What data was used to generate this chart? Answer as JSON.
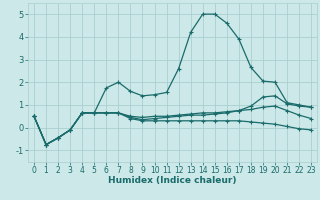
{
  "xlabel": "Humidex (Indice chaleur)",
  "xlim": [
    -0.5,
    23.5
  ],
  "ylim": [
    -1.5,
    5.5
  ],
  "xticks": [
    0,
    1,
    2,
    3,
    4,
    5,
    6,
    7,
    8,
    9,
    10,
    11,
    12,
    13,
    14,
    15,
    16,
    17,
    18,
    19,
    20,
    21,
    22,
    23
  ],
  "yticks": [
    -1,
    0,
    1,
    2,
    3,
    4,
    5
  ],
  "bg_color": "#cce8e8",
  "grid_color": "#aacece",
  "line_color": "#1a6b6b",
  "line1_y": [
    0.5,
    -0.75,
    -0.45,
    -0.1,
    0.65,
    0.65,
    1.75,
    2.0,
    1.6,
    1.4,
    1.45,
    1.55,
    2.6,
    4.2,
    5.0,
    5.0,
    4.6,
    3.9,
    2.65,
    2.05,
    2.0,
    1.1,
    1.0,
    0.9
  ],
  "line2_y": [
    0.5,
    -0.75,
    -0.45,
    -0.1,
    0.65,
    0.65,
    0.65,
    0.65,
    0.45,
    0.35,
    0.4,
    0.45,
    0.5,
    0.55,
    0.55,
    0.6,
    0.65,
    0.75,
    0.95,
    1.35,
    1.4,
    1.05,
    0.95,
    0.9
  ],
  "line3_y": [
    0.5,
    -0.75,
    -0.45,
    -0.1,
    0.65,
    0.65,
    0.65,
    0.65,
    0.5,
    0.45,
    0.5,
    0.5,
    0.55,
    0.6,
    0.65,
    0.65,
    0.7,
    0.75,
    0.8,
    0.9,
    0.95,
    0.75,
    0.55,
    0.4
  ],
  "line4_y": [
    0.5,
    -0.75,
    -0.45,
    -0.1,
    0.65,
    0.65,
    0.65,
    0.65,
    0.4,
    0.3,
    0.3,
    0.3,
    0.3,
    0.3,
    0.3,
    0.3,
    0.3,
    0.3,
    0.25,
    0.2,
    0.15,
    0.05,
    -0.05,
    -0.1
  ]
}
